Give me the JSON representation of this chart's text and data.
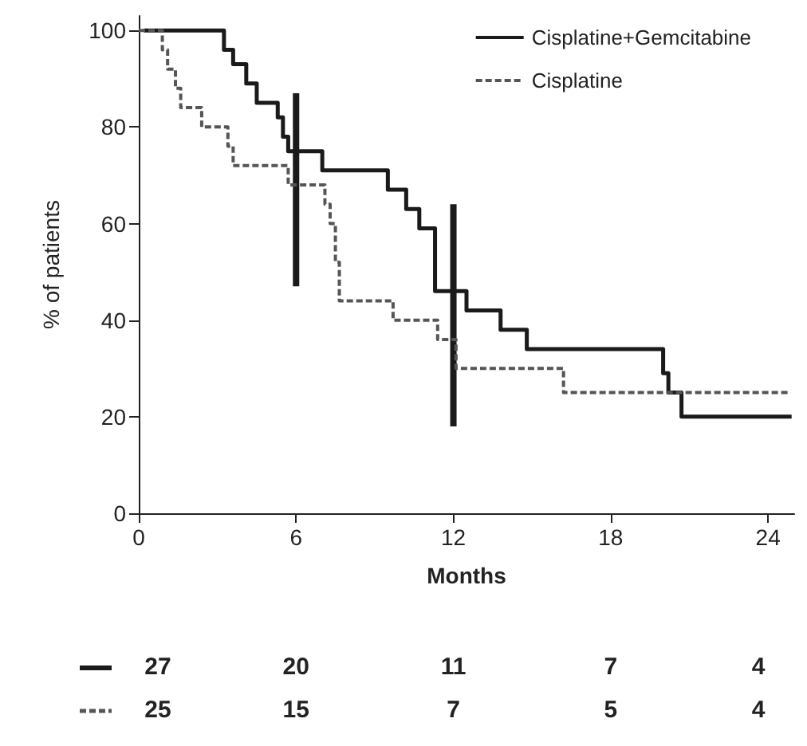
{
  "chart_data": {
    "type": "step",
    "xlabel": "Months",
    "ylabel": "% of patients",
    "xlim": [
      0,
      25
    ],
    "xticks": [
      0,
      6,
      12,
      18,
      24
    ],
    "ylim": [
      0,
      103
    ],
    "yticks": [
      0,
      20,
      40,
      60,
      80,
      100
    ],
    "grid": false,
    "legend": "top right",
    "marker": "none",
    "series": [
      {
        "name": "Cisplatine+Gemcitabine",
        "color": "#1a1a1a",
        "line_style": "solid",
        "x": [
          0.2,
          3.25,
          3.6,
          4.1,
          4.5,
          5.3,
          5.5,
          5.7,
          7.0,
          9.5,
          10.2,
          10.7,
          11.3,
          12.5,
          13.8,
          14.8,
          20.0,
          20.2,
          20.7,
          24.9
        ],
        "values": [
          100,
          96,
          93,
          89,
          85,
          82,
          78,
          75,
          71,
          67,
          63,
          59,
          46,
          42,
          38,
          34,
          29,
          25,
          20,
          20
        ]
      },
      {
        "name": "Cisplatine",
        "color": "#555555",
        "line_style": "dashed",
        "x": [
          0,
          0.9,
          1.1,
          1.4,
          1.6,
          2.4,
          3.4,
          3.6,
          5.7,
          7.1,
          7.3,
          7.5,
          7.65,
          9.7,
          11.4,
          12.1,
          16.2,
          24.8
        ],
        "values": [
          100,
          96,
          92,
          88,
          84,
          80,
          76,
          72,
          68,
          64,
          60,
          52,
          44,
          40,
          36,
          30,
          25,
          25
        ]
      },
      {
        "type": "bar",
        "color": "#1a1a1a",
        "x": [
          6,
          12
        ],
        "base": [
          47,
          18
        ],
        "values": [
          40,
          46
        ]
      }
    ],
    "annotations": [
      "27",
      "20",
      "11",
      "7",
      "4",
      "25",
      "15",
      "7",
      "5",
      "4"
    ]
  }
}
